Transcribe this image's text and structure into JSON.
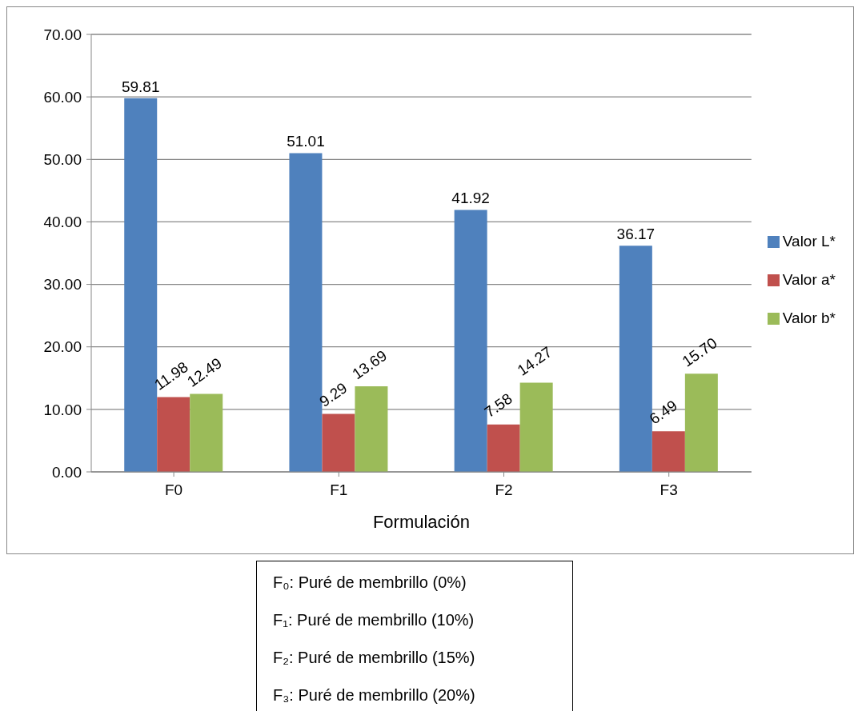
{
  "chart_data": {
    "type": "bar",
    "xlabel": "Formulación",
    "categories": [
      "F0",
      "F1",
      "F2",
      "F3"
    ],
    "series": [
      {
        "name": "Valor L*",
        "color": "#4f81bd",
        "values": [
          59.81,
          51.01,
          41.92,
          36.17
        ],
        "value_labels": [
          "59.81",
          "51.01",
          "41.92",
          "36.17"
        ]
      },
      {
        "name": "Valor a*",
        "color": "#c0504d",
        "values": [
          11.98,
          9.29,
          7.58,
          6.49
        ],
        "value_labels": [
          "11.98",
          "9.29",
          "7.58",
          "6.49"
        ]
      },
      {
        "name": "Valor b*",
        "color": "#9bbb59",
        "values": [
          12.49,
          13.69,
          14.27,
          15.7
        ],
        "value_labels": [
          "12.49",
          "13.69",
          "14.27",
          "15.70"
        ]
      }
    ],
    "ylim": [
      0,
      70
    ],
    "yticks": [
      {
        "value": 0,
        "label": "0.00"
      },
      {
        "value": 10,
        "label": "10.00"
      },
      {
        "value": 20,
        "label": "20.00"
      },
      {
        "value": 30,
        "label": "30.00"
      },
      {
        "value": 40,
        "label": "40.00"
      },
      {
        "value": 50,
        "label": "50.00"
      },
      {
        "value": 60,
        "label": "60.00"
      },
      {
        "value": 70,
        "label": "70.00"
      }
    ],
    "grid": "y",
    "legend": "right",
    "annotations": [
      "F₀: Puré de membrillo (0%)",
      "F₁: Puré de membrillo (10%)",
      "F₂: Puré de membrillo (15%)",
      "F₃: Puré de membrillo (20%)"
    ]
  }
}
